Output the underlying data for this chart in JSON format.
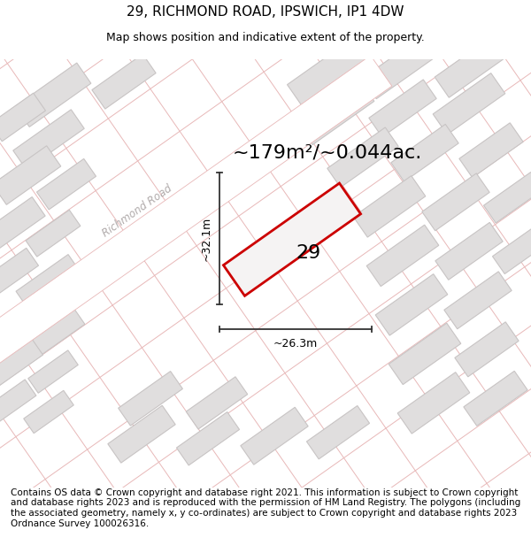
{
  "title": "29, RICHMOND ROAD, IPSWICH, IP1 4DW",
  "subtitle": "Map shows position and indicative extent of the property.",
  "area_text": "~179m²/~0.044ac.",
  "label_32": "~32.1m",
  "label_26": "~26.3m",
  "property_number": "29",
  "road_label": "Richmond Road",
  "footer": "Contains OS data © Crown copyright and database right 2021. This information is subject to Crown copyright and database rights 2023 and is reproduced with the permission of HM Land Registry. The polygons (including the associated geometry, namely x, y co-ordinates) are subject to Crown copyright and database rights 2023 Ordnance Survey 100026316.",
  "map_bg": "#f8f7f7",
  "property_fill": "#f0eeee",
  "property_edge": "#cc0000",
  "road_line_color": "#e8b8b8",
  "building_fill": "#e0dede",
  "building_edge": "#c8c4c4",
  "title_fontsize": 11,
  "subtitle_fontsize": 9,
  "area_fontsize": 16,
  "footer_fontsize": 7.5,
  "road_label_color": "#b0aaaa",
  "dim_line_color": "#333333"
}
